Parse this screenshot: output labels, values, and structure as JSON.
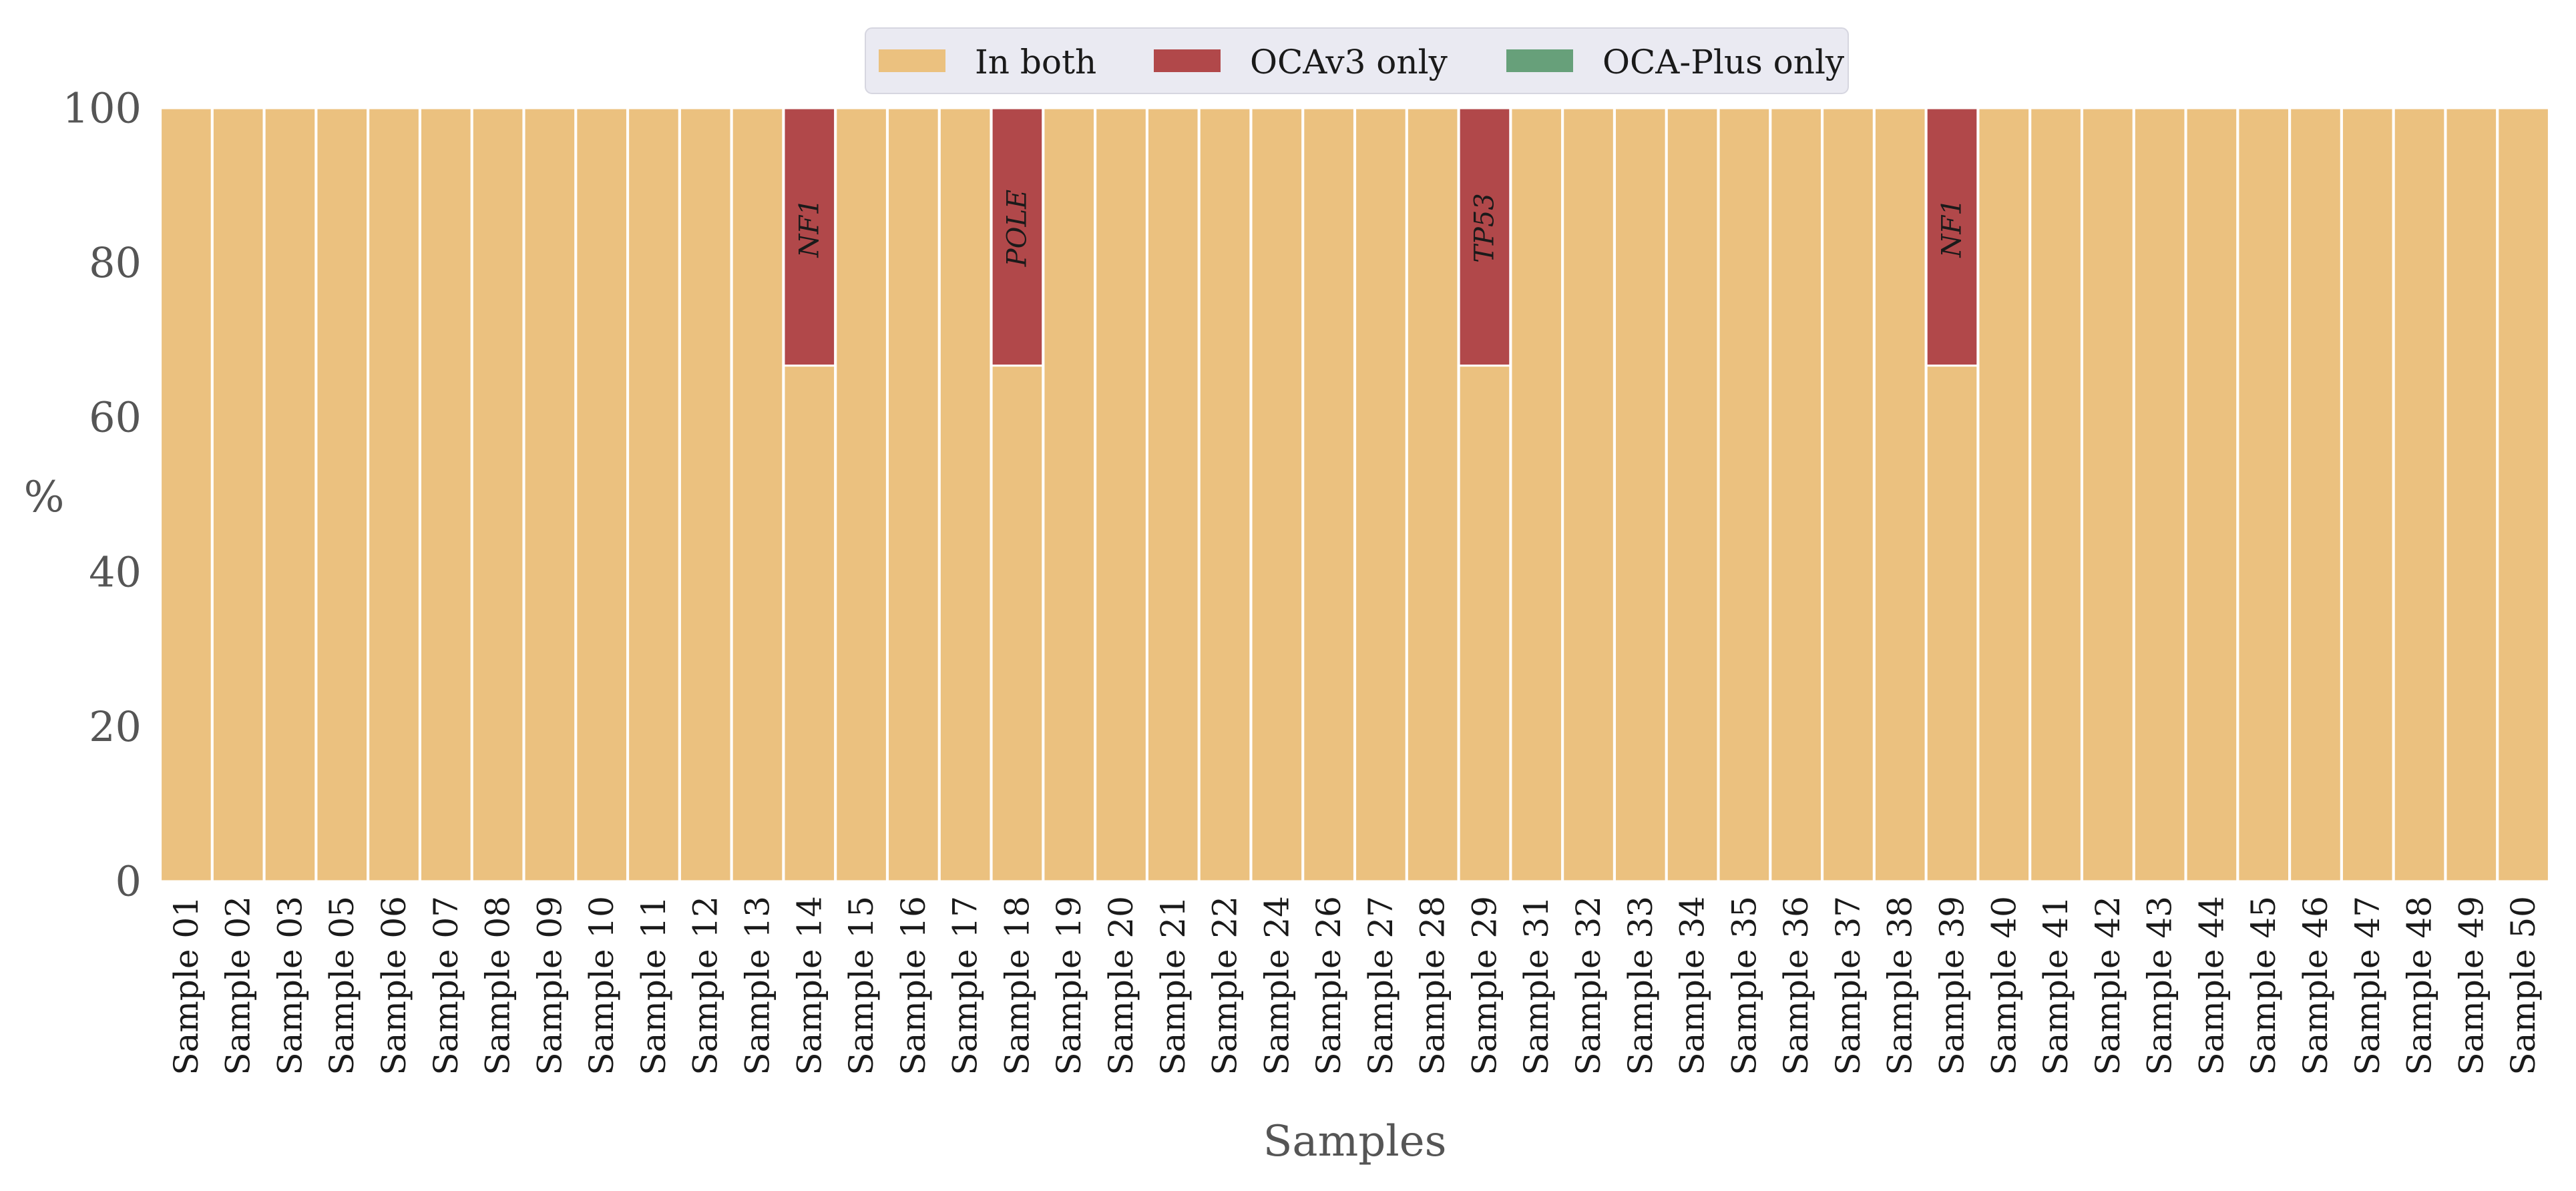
{
  "chart_data": {
    "type": "bar",
    "stacked": true,
    "title": "",
    "xlabel": "Samples",
    "ylabel": "%",
    "ylim": [
      0,
      100
    ],
    "yticks": [
      0,
      20,
      40,
      60,
      80,
      100
    ],
    "grid": true,
    "legend_position": "top-center",
    "categories": [
      "Sample 01",
      "Sample 02",
      "Sample 03",
      "Sample 05",
      "Sample 06",
      "Sample 07",
      "Sample 08",
      "Sample 09",
      "Sample 10",
      "Sample 11",
      "Sample 12",
      "Sample 13",
      "Sample 14",
      "Sample 15",
      "Sample 16",
      "Sample 17",
      "Sample 18",
      "Sample 19",
      "Sample 20",
      "Sample 21",
      "Sample 22",
      "Sample 24",
      "Sample 26",
      "Sample 27",
      "Sample 28",
      "Sample 29",
      "Sample 31",
      "Sample 32",
      "Sample 33",
      "Sample 34",
      "Sample 35",
      "Sample 36",
      "Sample 37",
      "Sample 38",
      "Sample 39",
      "Sample 40",
      "Sample 41",
      "Sample 42",
      "Sample 43",
      "Sample 44",
      "Sample 45",
      "Sample 46",
      "Sample 47",
      "Sample 48",
      "Sample 49",
      "Sample 50"
    ],
    "series": [
      {
        "name": "In both",
        "color": "#EBC17F",
        "values": [
          100,
          100,
          100,
          100,
          100,
          100,
          100,
          100,
          100,
          100,
          100,
          100,
          66.7,
          100,
          100,
          100,
          66.7,
          100,
          100,
          100,
          100,
          100,
          100,
          100,
          100,
          66.7,
          100,
          100,
          100,
          100,
          100,
          100,
          100,
          100,
          66.7,
          100,
          100,
          100,
          100,
          100,
          100,
          100,
          100,
          100,
          100,
          100
        ]
      },
      {
        "name": "OCAv3 only",
        "color": "#B1484A",
        "values": [
          0,
          0,
          0,
          0,
          0,
          0,
          0,
          0,
          0,
          0,
          0,
          0,
          33.3,
          0,
          0,
          0,
          33.3,
          0,
          0,
          0,
          0,
          0,
          0,
          0,
          0,
          33.3,
          0,
          0,
          0,
          0,
          0,
          0,
          0,
          0,
          33.3,
          0,
          0,
          0,
          0,
          0,
          0,
          0,
          0,
          0,
          0,
          0
        ]
      },
      {
        "name": "OCA-Plus only",
        "color": "#67A07A",
        "values": [
          0,
          0,
          0,
          0,
          0,
          0,
          0,
          0,
          0,
          0,
          0,
          0,
          0,
          0,
          0,
          0,
          0,
          0,
          0,
          0,
          0,
          0,
          0,
          0,
          0,
          0,
          0,
          0,
          0,
          0,
          0,
          0,
          0,
          0,
          0,
          0,
          0,
          0,
          0,
          0,
          0,
          0,
          0,
          0,
          0,
          0
        ]
      }
    ],
    "annotations": [
      {
        "category": "Sample 14",
        "text": "NF1"
      },
      {
        "category": "Sample 18",
        "text": "POLE"
      },
      {
        "category": "Sample 29",
        "text": "TP53"
      },
      {
        "category": "Sample 39",
        "text": "NF1"
      }
    ]
  },
  "colors": {
    "plot_background": "#EAEAF2",
    "grid": "#FFFFFF",
    "legend_background": "#EAEAF2"
  }
}
